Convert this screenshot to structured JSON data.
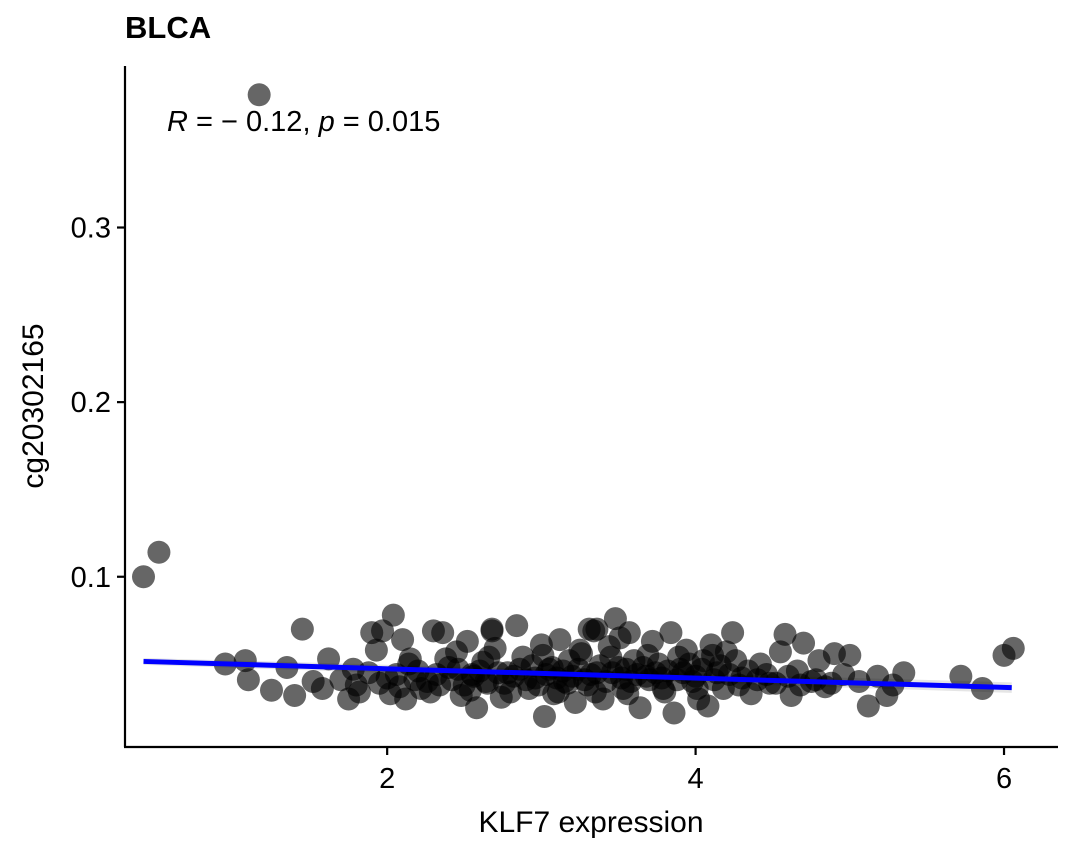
{
  "chart_data": {
    "type": "scatter",
    "title": "BLCA",
    "xlabel": "KLF7 expression",
    "ylabel": "cg20302165",
    "xlim": [
      0.3,
      6.35
    ],
    "ylim": [
      0.0025,
      0.3925
    ],
    "x_ticks": [
      2,
      4,
      6
    ],
    "x_tick_labels": [
      "2",
      "4",
      "6"
    ],
    "y_ticks": [
      0.1,
      0.2,
      0.3
    ],
    "y_tick_labels": [
      "0.1",
      "0.2",
      "0.3"
    ],
    "grid": false,
    "annotation": {
      "r_symbol": "R",
      "r_equals": " = − 0.12, ",
      "p_symbol": "p",
      "p_equals": " = 0.015"
    },
    "point_color": "#000000",
    "point_alpha": 0.6,
    "fit_line_color": "#0000ff",
    "fit_line": {
      "x": [
        0.42,
        6.05
      ],
      "y": [
        0.0515,
        0.0365
      ]
    },
    "confidence_band": {
      "x": [
        0.42,
        6.05
      ],
      "lower": [
        0.0495,
        0.0335
      ],
      "upper": [
        0.0535,
        0.0395
      ]
    },
    "points": [
      [
        1.17,
        0.376
      ],
      [
        0.52,
        0.114
      ],
      [
        0.42,
        0.1
      ],
      [
        0.95,
        0.05
      ],
      [
        1.08,
        0.052
      ],
      [
        1.1,
        0.041
      ],
      [
        1.25,
        0.035
      ],
      [
        1.45,
        0.07
      ],
      [
        1.35,
        0.048
      ],
      [
        1.52,
        0.04
      ],
      [
        1.4,
        0.032
      ],
      [
        1.58,
        0.036
      ],
      [
        1.62,
        0.053
      ],
      [
        1.75,
        0.03
      ],
      [
        1.82,
        0.034
      ],
      [
        1.88,
        0.045
      ],
      [
        1.9,
        0.068
      ],
      [
        1.93,
        0.058
      ],
      [
        1.97,
        0.069
      ],
      [
        2.04,
        0.078
      ],
      [
        2.06,
        0.044
      ],
      [
        2.1,
        0.064
      ],
      [
        2.12,
        0.03
      ],
      [
        2.15,
        0.053
      ],
      [
        2.18,
        0.041
      ],
      [
        2.22,
        0.036
      ],
      [
        2.3,
        0.069
      ],
      [
        2.34,
        0.038
      ],
      [
        2.36,
        0.068
      ],
      [
        2.4,
        0.048
      ],
      [
        2.45,
        0.057
      ],
      [
        2.48,
        0.032
      ],
      [
        2.52,
        0.063
      ],
      [
        2.55,
        0.044
      ],
      [
        2.58,
        0.025
      ],
      [
        2.62,
        0.051
      ],
      [
        2.65,
        0.039
      ],
      [
        2.68,
        0.07
      ],
      [
        2.7,
        0.059
      ],
      [
        2.74,
        0.031
      ],
      [
        2.78,
        0.045
      ],
      [
        2.84,
        0.072
      ],
      [
        2.88,
        0.054
      ],
      [
        2.92,
        0.036
      ],
      [
        2.96,
        0.042
      ],
      [
        3.0,
        0.061
      ],
      [
        3.02,
        0.02
      ],
      [
        3.05,
        0.047
      ],
      [
        3.08,
        0.033
      ],
      [
        3.12,
        0.064
      ],
      [
        3.15,
        0.04
      ],
      [
        3.18,
        0.052
      ],
      [
        3.22,
        0.028
      ],
      [
        3.26,
        0.056
      ],
      [
        3.3,
        0.038
      ],
      [
        3.34,
        0.069
      ],
      [
        3.36,
        0.045
      ],
      [
        3.4,
        0.03
      ],
      [
        3.44,
        0.06
      ],
      [
        3.48,
        0.076
      ],
      [
        3.5,
        0.048
      ],
      [
        3.53,
        0.036
      ],
      [
        3.57,
        0.068
      ],
      [
        3.6,
        0.052
      ],
      [
        3.64,
        0.025
      ],
      [
        3.68,
        0.043
      ],
      [
        3.72,
        0.063
      ],
      [
        3.76,
        0.05
      ],
      [
        3.8,
        0.034
      ],
      [
        3.84,
        0.068
      ],
      [
        3.86,
        0.022
      ],
      [
        3.9,
        0.047
      ],
      [
        3.94,
        0.058
      ],
      [
        3.98,
        0.04
      ],
      [
        4.02,
        0.03
      ],
      [
        4.05,
        0.052
      ],
      [
        4.08,
        0.026
      ],
      [
        4.1,
        0.061
      ],
      [
        4.14,
        0.045
      ],
      [
        4.18,
        0.036
      ],
      [
        4.2,
        0.057
      ],
      [
        4.24,
        0.068
      ],
      [
        4.3,
        0.042
      ],
      [
        4.36,
        0.033
      ],
      [
        4.42,
        0.05
      ],
      [
        4.48,
        0.039
      ],
      [
        4.55,
        0.057
      ],
      [
        4.58,
        0.067
      ],
      [
        4.62,
        0.032
      ],
      [
        4.66,
        0.046
      ],
      [
        4.7,
        0.062
      ],
      [
        4.75,
        0.04
      ],
      [
        4.8,
        0.052
      ],
      [
        4.84,
        0.037
      ],
      [
        4.9,
        0.056
      ],
      [
        4.96,
        0.044
      ],
      [
        5.0,
        0.055
      ],
      [
        5.06,
        0.04
      ],
      [
        5.12,
        0.026
      ],
      [
        5.18,
        0.043
      ],
      [
        5.24,
        0.032
      ],
      [
        5.28,
        0.038
      ],
      [
        5.35,
        0.045
      ],
      [
        5.72,
        0.043
      ],
      [
        5.86,
        0.036
      ],
      [
        6.0,
        0.055
      ],
      [
        6.06,
        0.059
      ],
      [
        1.7,
        0.041
      ],
      [
        1.8,
        0.038
      ],
      [
        1.95,
        0.039
      ],
      [
        2.0,
        0.042
      ],
      [
        2.08,
        0.037
      ],
      [
        2.2,
        0.046
      ],
      [
        2.26,
        0.04
      ],
      [
        2.32,
        0.044
      ],
      [
        2.42,
        0.041
      ],
      [
        2.46,
        0.047
      ],
      [
        2.5,
        0.038
      ],
      [
        2.56,
        0.043
      ],
      [
        2.6,
        0.046
      ],
      [
        2.64,
        0.04
      ],
      [
        2.72,
        0.045
      ],
      [
        2.76,
        0.039
      ],
      [
        2.82,
        0.043
      ],
      [
        2.86,
        0.047
      ],
      [
        2.9,
        0.041
      ],
      [
        2.94,
        0.049
      ],
      [
        2.98,
        0.038
      ],
      [
        3.03,
        0.044
      ],
      [
        3.07,
        0.048
      ],
      [
        3.1,
        0.042
      ],
      [
        3.14,
        0.046
      ],
      [
        3.17,
        0.039
      ],
      [
        3.2,
        0.043
      ],
      [
        3.24,
        0.047
      ],
      [
        3.28,
        0.041
      ],
      [
        3.32,
        0.044
      ],
      [
        3.38,
        0.049
      ],
      [
        3.42,
        0.04
      ],
      [
        3.46,
        0.045
      ],
      [
        3.52,
        0.042
      ],
      [
        3.55,
        0.047
      ],
      [
        3.58,
        0.04
      ],
      [
        3.62,
        0.044
      ],
      [
        3.66,
        0.048
      ],
      [
        3.7,
        0.041
      ],
      [
        3.74,
        0.045
      ],
      [
        3.78,
        0.042
      ],
      [
        3.82,
        0.046
      ],
      [
        3.88,
        0.041
      ],
      [
        3.92,
        0.045
      ],
      [
        3.96,
        0.05
      ],
      [
        4.0,
        0.043
      ],
      [
        4.04,
        0.047
      ],
      [
        4.12,
        0.041
      ],
      [
        4.16,
        0.049
      ],
      [
        4.22,
        0.044
      ],
      [
        4.28,
        0.038
      ],
      [
        4.34,
        0.046
      ],
      [
        4.4,
        0.041
      ],
      [
        4.46,
        0.044
      ],
      [
        4.52,
        0.039
      ],
      [
        4.6,
        0.043
      ],
      [
        4.68,
        0.038
      ],
      [
        4.78,
        0.041
      ],
      [
        4.88,
        0.039
      ],
      [
        1.78,
        0.047
      ],
      [
        2.02,
        0.033
      ],
      [
        2.14,
        0.05
      ],
      [
        2.28,
        0.034
      ],
      [
        2.38,
        0.053
      ],
      [
        2.54,
        0.035
      ],
      [
        2.66,
        0.054
      ],
      [
        2.8,
        0.034
      ],
      [
        3.01,
        0.055
      ],
      [
        3.11,
        0.034
      ],
      [
        3.25,
        0.058
      ],
      [
        3.35,
        0.034
      ],
      [
        3.45,
        0.054
      ],
      [
        3.56,
        0.033
      ],
      [
        3.69,
        0.055
      ],
      [
        3.79,
        0.036
      ],
      [
        3.89,
        0.054
      ],
      [
        4.01,
        0.036
      ],
      [
        4.11,
        0.055
      ],
      [
        4.26,
        0.052
      ],
      [
        3.36,
        0.07
      ],
      [
        3.31,
        0.07
      ],
      [
        2.68,
        0.069
      ],
      [
        3.51,
        0.065
      ]
    ]
  }
}
